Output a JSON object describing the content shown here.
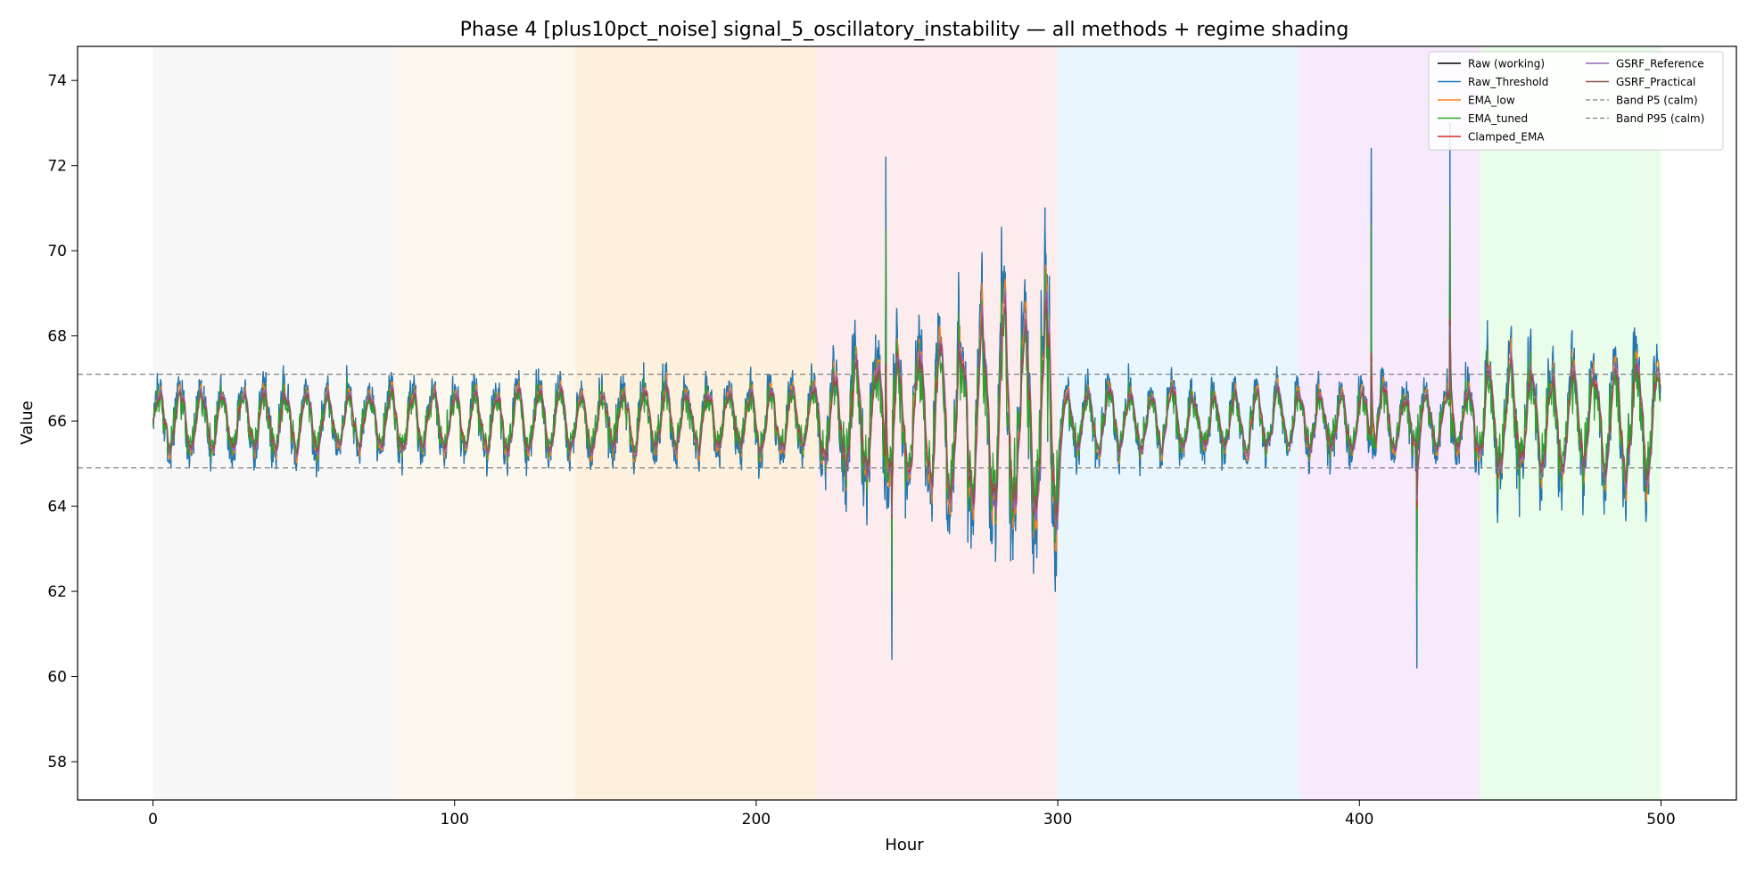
{
  "chart_data": {
    "type": "line",
    "title": "Phase 4 [plus10pct_noise] signal_5_oscillatory_instability — all methods + regime shading",
    "xlabel": "Hour",
    "ylabel": "Value",
    "xlim": [
      -25,
      525
    ],
    "ylim": [
      57.1,
      74.8
    ],
    "x_ticks": [
      0,
      100,
      200,
      300,
      400,
      500
    ],
    "y_ticks": [
      58,
      60,
      62,
      64,
      66,
      68,
      70,
      72,
      74
    ],
    "grid": false,
    "legend": {
      "position": "top-right",
      "columns": 2
    },
    "regimes": [
      {
        "start": 0,
        "end": 80,
        "color": "#f7f7f7"
      },
      {
        "start": 80,
        "end": 140,
        "color": "#fdf8ee"
      },
      {
        "start": 140,
        "end": 220,
        "color": "#fdf0dc"
      },
      {
        "start": 220,
        "end": 300,
        "color": "#fdeced"
      },
      {
        "start": 300,
        "end": 380,
        "color": "#eaf6fd"
      },
      {
        "start": 380,
        "end": 440,
        "color": "#f6eafc"
      },
      {
        "start": 440,
        "end": 500,
        "color": "#eafdea"
      }
    ],
    "signal": {
      "base": 66.0,
      "period_hours": 7.0,
      "envelope": [
        {
          "x": 0,
          "amplitude": 1.4
        },
        {
          "x": 220,
          "amplitude": 1.4
        },
        {
          "x": 222,
          "amplitude": 2.2
        },
        {
          "x": 250,
          "amplitude": 3.0
        },
        {
          "x": 290,
          "amplitude": 5.2
        },
        {
          "x": 300,
          "amplitude": 5.6
        },
        {
          "x": 300.5,
          "amplitude": 1.4
        },
        {
          "x": 440,
          "amplitude": 1.4
        },
        {
          "x": 441,
          "amplitude": 2.6
        },
        {
          "x": 500,
          "amplitude": 2.6
        }
      ],
      "spikes": [
        {
          "x": 243,
          "value": 72.2
        },
        {
          "x": 245,
          "value": 60.4
        },
        {
          "x": 404,
          "value": 72.4
        },
        {
          "x": 419,
          "value": 60.2
        },
        {
          "x": 430,
          "value": 73.0
        }
      ]
    },
    "series": [
      {
        "name": "Raw (working)",
        "color": "#000000",
        "linestyle": "solid"
      },
      {
        "name": "Raw_Threshold",
        "color": "#1f77b4",
        "linestyle": "solid"
      },
      {
        "name": "EMA_low",
        "color": "#ff7f0e",
        "linestyle": "solid"
      },
      {
        "name": "EMA_tuned",
        "color": "#2ca02c",
        "linestyle": "solid"
      },
      {
        "name": "Clamped_EMA",
        "color": "#d62728",
        "linestyle": "solid"
      },
      {
        "name": "GSRF_Reference",
        "color": "#9467bd",
        "linestyle": "solid"
      },
      {
        "name": "GSRF_Practical",
        "color": "#8c564b",
        "linestyle": "solid"
      },
      {
        "name": "Band P5 (calm)",
        "color": "#808080",
        "linestyle": "dashed",
        "value": 64.9
      },
      {
        "name": "Band P95 (calm)",
        "color": "#808080",
        "linestyle": "dashed",
        "value": 67.1
      }
    ]
  }
}
